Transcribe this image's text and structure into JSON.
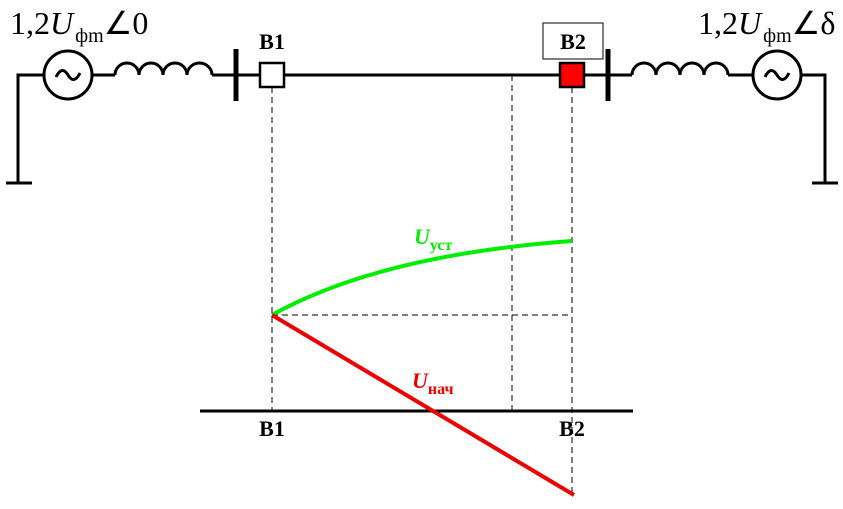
{
  "sources": [
    {
      "prefix": "1,2",
      "symbol": "U",
      "subscript": "фm",
      "angle": "∠0"
    },
    {
      "prefix": "1,2",
      "symbol": "U",
      "subscript": "фm",
      "angle": "∠δ"
    }
  ],
  "breakers": [
    {
      "label": "B1"
    },
    {
      "label": "B2"
    }
  ],
  "axis_labels": [
    "B1",
    "B2"
  ],
  "curves": [
    {
      "symbol": "U",
      "subscript": "уст"
    },
    {
      "symbol": "U",
      "subscript": "нач"
    }
  ]
}
